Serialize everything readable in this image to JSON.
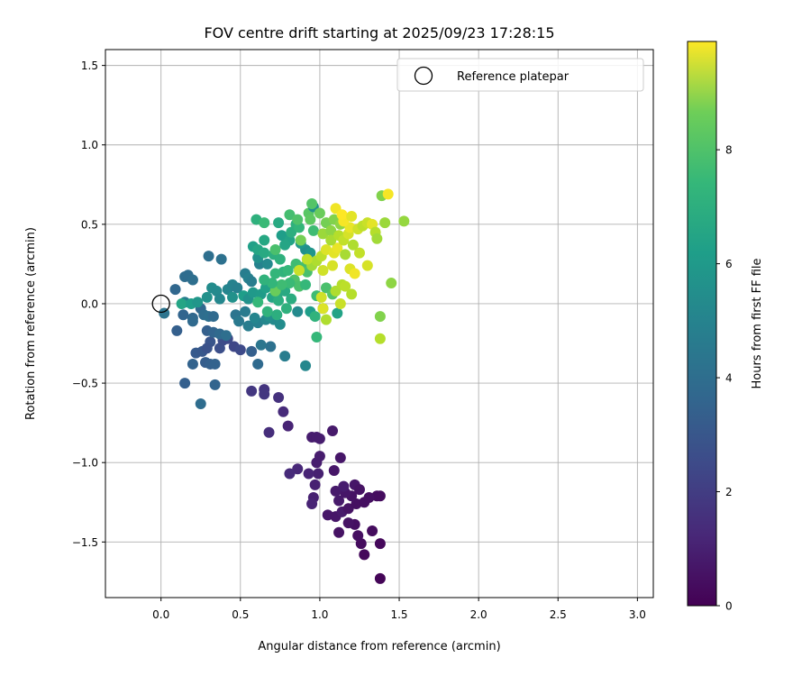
{
  "chart_data": {
    "type": "scatter",
    "title": "FOV centre drift starting at 2025/09/23 17:28:15",
    "xlabel": "Angular distance from reference (arcmin)",
    "ylabel": "Rotation from reference (arcmin)",
    "xlim": [
      -0.35,
      3.1
    ],
    "ylim": [
      -1.85,
      1.6
    ],
    "xticks": [
      0.0,
      0.5,
      1.0,
      1.5,
      2.0,
      2.5,
      3.0
    ],
    "xtick_labels": [
      "0.0",
      "0.5",
      "1.0",
      "1.5",
      "2.0",
      "2.5",
      "3.0"
    ],
    "yticks": [
      -1.5,
      -1.0,
      -0.5,
      0.0,
      0.5,
      1.0,
      1.5
    ],
    "ytick_labels": [
      "−1.5",
      "−1.0",
      "−0.5",
      "0.0",
      "0.5",
      "1.0",
      "1.5"
    ],
    "grid": true,
    "legend": {
      "position": "top-right",
      "entries": [
        {
          "label": "Reference platepar",
          "marker": "open-circle"
        }
      ]
    },
    "reference_point": {
      "x": 0.0,
      "y": 0.0
    },
    "colorbar": {
      "label": "Hours from first FF file",
      "range": [
        0,
        9.9
      ],
      "ticks": [
        0,
        2,
        4,
        6,
        8
      ],
      "tick_labels": [
        "0",
        "2",
        "4",
        "6",
        "8"
      ],
      "colormap": "viridis"
    },
    "points": [
      {
        "x": 1.38,
        "y": -1.73,
        "c": 0.1
      },
      {
        "x": 1.28,
        "y": -1.58,
        "c": 0.2
      },
      {
        "x": 1.38,
        "y": -1.51,
        "c": 0.2
      },
      {
        "x": 1.26,
        "y": -1.51,
        "c": 0.3
      },
      {
        "x": 1.33,
        "y": -1.43,
        "c": 0.3
      },
      {
        "x": 1.24,
        "y": -1.46,
        "c": 0.4
      },
      {
        "x": 1.22,
        "y": -1.39,
        "c": 0.4
      },
      {
        "x": 1.12,
        "y": -1.44,
        "c": 0.5
      },
      {
        "x": 1.18,
        "y": -1.38,
        "c": 0.5
      },
      {
        "x": 1.1,
        "y": -1.34,
        "c": 0.6
      },
      {
        "x": 1.05,
        "y": -1.33,
        "c": 0.6
      },
      {
        "x": 1.14,
        "y": -1.31,
        "c": 0.7
      },
      {
        "x": 1.18,
        "y": -1.29,
        "c": 0.5
      },
      {
        "x": 1.23,
        "y": -1.26,
        "c": 0.4
      },
      {
        "x": 1.28,
        "y": -1.25,
        "c": 0.4
      },
      {
        "x": 1.2,
        "y": -1.21,
        "c": 0.5
      },
      {
        "x": 1.16,
        "y": -1.19,
        "c": 0.6
      },
      {
        "x": 1.1,
        "y": -1.18,
        "c": 0.7
      },
      {
        "x": 1.15,
        "y": -1.15,
        "c": 0.8
      },
      {
        "x": 1.22,
        "y": -1.14,
        "c": 0.6
      },
      {
        "x": 1.25,
        "y": -1.17,
        "c": 0.5
      },
      {
        "x": 1.36,
        "y": -1.21,
        "c": 0.3
      },
      {
        "x": 1.38,
        "y": -1.21,
        "c": 0.3
      },
      {
        "x": 1.31,
        "y": -1.22,
        "c": 0.4
      },
      {
        "x": 1.12,
        "y": -1.24,
        "c": 0.7
      },
      {
        "x": 0.96,
        "y": -1.22,
        "c": 0.9
      },
      {
        "x": 0.95,
        "y": -1.26,
        "c": 1.0
      },
      {
        "x": 0.97,
        "y": -1.14,
        "c": 0.9
      },
      {
        "x": 0.99,
        "y": -1.07,
        "c": 0.9
      },
      {
        "x": 0.93,
        "y": -1.07,
        "c": 1.0
      },
      {
        "x": 0.86,
        "y": -1.04,
        "c": 1.1
      },
      {
        "x": 0.81,
        "y": -1.07,
        "c": 1.2
      },
      {
        "x": 0.98,
        "y": -1.0,
        "c": 0.8
      },
      {
        "x": 1.0,
        "y": -0.96,
        "c": 0.8
      },
      {
        "x": 1.09,
        "y": -1.05,
        "c": 0.6
      },
      {
        "x": 1.13,
        "y": -0.97,
        "c": 0.6
      },
      {
        "x": 1.08,
        "y": -0.8,
        "c": 0.7
      },
      {
        "x": 0.95,
        "y": -0.84,
        "c": 0.8
      },
      {
        "x": 0.98,
        "y": -0.84,
        "c": 0.8
      },
      {
        "x": 1.0,
        "y": -0.85,
        "c": 0.8
      },
      {
        "x": 0.8,
        "y": -0.77,
        "c": 1.0
      },
      {
        "x": 0.77,
        "y": -0.68,
        "c": 1.2
      },
      {
        "x": 0.68,
        "y": -0.81,
        "c": 1.3
      },
      {
        "x": 0.74,
        "y": -0.59,
        "c": 1.4
      },
      {
        "x": 0.65,
        "y": -0.54,
        "c": 1.5
      },
      {
        "x": 0.65,
        "y": -0.57,
        "c": 1.6
      },
      {
        "x": 0.57,
        "y": -0.55,
        "c": 1.6
      },
      {
        "x": 0.25,
        "y": -0.63,
        "c": 3.5
      },
      {
        "x": 0.15,
        "y": -0.5,
        "c": 3.0
      },
      {
        "x": 0.34,
        "y": -0.51,
        "c": 3.2
      },
      {
        "x": 0.2,
        "y": -0.38,
        "c": 3.1
      },
      {
        "x": 0.28,
        "y": -0.37,
        "c": 2.9
      },
      {
        "x": 0.31,
        "y": -0.38,
        "c": 3.0
      },
      {
        "x": 0.34,
        "y": -0.38,
        "c": 3.1
      },
      {
        "x": 0.22,
        "y": -0.31,
        "c": 2.8
      },
      {
        "x": 0.26,
        "y": -0.3,
        "c": 2.7
      },
      {
        "x": 0.31,
        "y": -0.24,
        "c": 2.6
      },
      {
        "x": 0.29,
        "y": -0.28,
        "c": 2.5
      },
      {
        "x": 0.37,
        "y": -0.28,
        "c": 2.4
      },
      {
        "x": 0.39,
        "y": -0.23,
        "c": 2.3
      },
      {
        "x": 0.42,
        "y": -0.22,
        "c": 2.2
      },
      {
        "x": 0.46,
        "y": -0.27,
        "c": 2.1
      },
      {
        "x": 0.5,
        "y": -0.29,
        "c": 2.2
      },
      {
        "x": 0.57,
        "y": -0.3,
        "c": 3.0
      },
      {
        "x": 0.61,
        "y": -0.38,
        "c": 3.4
      },
      {
        "x": 0.69,
        "y": -0.27,
        "c": 3.7
      },
      {
        "x": 0.63,
        "y": -0.26,
        "c": 3.9
      },
      {
        "x": 0.78,
        "y": -0.33,
        "c": 4.2
      },
      {
        "x": 0.91,
        "y": -0.39,
        "c": 4.6
      },
      {
        "x": 0.1,
        "y": -0.17,
        "c": 3.0
      },
      {
        "x": 0.14,
        "y": -0.07,
        "c": 3.2
      },
      {
        "x": 0.2,
        "y": -0.09,
        "c": 3.3
      },
      {
        "x": 0.2,
        "y": -0.11,
        "c": 3.4
      },
      {
        "x": 0.25,
        "y": -0.03,
        "c": 3.3
      },
      {
        "x": 0.27,
        "y": -0.07,
        "c": 3.5
      },
      {
        "x": 0.3,
        "y": -0.08,
        "c": 3.6
      },
      {
        "x": 0.33,
        "y": -0.08,
        "c": 3.4
      },
      {
        "x": 0.29,
        "y": -0.17,
        "c": 3.0
      },
      {
        "x": 0.33,
        "y": -0.18,
        "c": 3.2
      },
      {
        "x": 0.37,
        "y": -0.19,
        "c": 3.4
      },
      {
        "x": 0.41,
        "y": -0.2,
        "c": 3.6
      },
      {
        "x": 0.47,
        "y": -0.07,
        "c": 3.8
      },
      {
        "x": 0.49,
        "y": -0.11,
        "c": 4.0
      },
      {
        "x": 0.53,
        "y": -0.05,
        "c": 4.1
      },
      {
        "x": 0.55,
        "y": -0.14,
        "c": 4.2
      },
      {
        "x": 0.61,
        "y": -0.12,
        "c": 4.3
      },
      {
        "x": 0.59,
        "y": -0.09,
        "c": 4.5
      },
      {
        "x": 0.66,
        "y": -0.1,
        "c": 4.6
      },
      {
        "x": 0.71,
        "y": -0.1,
        "c": 4.7
      },
      {
        "x": 0.75,
        "y": -0.13,
        "c": 4.8
      },
      {
        "x": 0.68,
        "y": -0.08,
        "c": 4.9
      },
      {
        "x": 0.02,
        "y": -0.06,
        "c": 3.8
      },
      {
        "x": 0.09,
        "y": 0.09,
        "c": 3.3
      },
      {
        "x": 0.15,
        "y": 0.17,
        "c": 3.5
      },
      {
        "x": 0.17,
        "y": 0.18,
        "c": 3.5
      },
      {
        "x": 0.2,
        "y": 0.15,
        "c": 3.6
      },
      {
        "x": 0.15,
        "y": 0.01,
        "c": 4.2
      },
      {
        "x": 0.13,
        "y": 0.0,
        "c": 5.8
      },
      {
        "x": 0.19,
        "y": 0.0,
        "c": 5.5
      },
      {
        "x": 0.23,
        "y": 0.01,
        "c": 5.2
      },
      {
        "x": 0.29,
        "y": 0.04,
        "c": 5.0
      },
      {
        "x": 0.32,
        "y": 0.1,
        "c": 4.8
      },
      {
        "x": 0.35,
        "y": 0.08,
        "c": 4.7
      },
      {
        "x": 0.37,
        "y": 0.03,
        "c": 4.6
      },
      {
        "x": 0.42,
        "y": 0.09,
        "c": 4.5
      },
      {
        "x": 0.45,
        "y": 0.12,
        "c": 4.4
      },
      {
        "x": 0.48,
        "y": 0.1,
        "c": 4.3
      },
      {
        "x": 0.53,
        "y": 0.19,
        "c": 4.2
      },
      {
        "x": 0.55,
        "y": 0.16,
        "c": 4.3
      },
      {
        "x": 0.57,
        "y": 0.14,
        "c": 4.2
      },
      {
        "x": 0.3,
        "y": 0.3,
        "c": 3.6
      },
      {
        "x": 0.38,
        "y": 0.28,
        "c": 3.7
      },
      {
        "x": 0.45,
        "y": 0.04,
        "c": 5.0
      },
      {
        "x": 0.52,
        "y": 0.05,
        "c": 5.5
      },
      {
        "x": 0.55,
        "y": 0.03,
        "c": 5.0
      },
      {
        "x": 0.58,
        "y": 0.07,
        "c": 5.3
      },
      {
        "x": 0.63,
        "y": 0.06,
        "c": 5.4
      },
      {
        "x": 0.66,
        "y": 0.1,
        "c": 5.6
      },
      {
        "x": 0.7,
        "y": 0.04,
        "c": 5.8
      },
      {
        "x": 0.73,
        "y": 0.05,
        "c": 5.9
      },
      {
        "x": 0.78,
        "y": 0.08,
        "c": 6.0
      },
      {
        "x": 0.82,
        "y": 0.03,
        "c": 6.1
      },
      {
        "x": 0.74,
        "y": 0.02,
        "c": 6.2
      },
      {
        "x": 0.79,
        "y": -0.03,
        "c": 6.3
      },
      {
        "x": 0.67,
        "y": -0.05,
        "c": 6.4
      },
      {
        "x": 0.73,
        "y": -0.07,
        "c": 6.2
      },
      {
        "x": 0.61,
        "y": 0.01,
        "c": 6.6
      },
      {
        "x": 0.72,
        "y": 0.08,
        "c": 7.6
      },
      {
        "x": 0.86,
        "y": -0.05,
        "c": 4.7
      },
      {
        "x": 0.94,
        "y": -0.05,
        "c": 5.5
      },
      {
        "x": 1.02,
        "y": -0.03,
        "c": 5.9
      },
      {
        "x": 0.97,
        "y": -0.08,
        "c": 6.4
      },
      {
        "x": 1.11,
        "y": -0.06,
        "c": 5.7
      },
      {
        "x": 0.98,
        "y": -0.21,
        "c": 6.6
      },
      {
        "x": 0.62,
        "y": 0.25,
        "c": 4.4
      },
      {
        "x": 0.67,
        "y": 0.25,
        "c": 4.7
      },
      {
        "x": 0.61,
        "y": 0.29,
        "c": 5.0
      },
      {
        "x": 0.58,
        "y": 0.36,
        "c": 5.6
      },
      {
        "x": 0.61,
        "y": 0.34,
        "c": 5.8
      },
      {
        "x": 0.65,
        "y": 0.32,
        "c": 6.0
      },
      {
        "x": 0.71,
        "y": 0.31,
        "c": 6.2
      },
      {
        "x": 0.75,
        "y": 0.28,
        "c": 6.3
      },
      {
        "x": 0.77,
        "y": 0.2,
        "c": 6.4
      },
      {
        "x": 0.72,
        "y": 0.19,
        "c": 6.5
      },
      {
        "x": 0.8,
        "y": 0.21,
        "c": 6.6
      },
      {
        "x": 0.85,
        "y": 0.25,
        "c": 6.8
      },
      {
        "x": 0.89,
        "y": 0.23,
        "c": 6.9
      },
      {
        "x": 0.92,
        "y": 0.2,
        "c": 7.0
      },
      {
        "x": 0.84,
        "y": 0.15,
        "c": 7.1
      },
      {
        "x": 0.87,
        "y": 0.11,
        "c": 7.0
      },
      {
        "x": 0.91,
        "y": 0.12,
        "c": 6.6
      },
      {
        "x": 0.81,
        "y": 0.13,
        "c": 6.7
      },
      {
        "x": 0.76,
        "y": 0.12,
        "c": 6.8
      },
      {
        "x": 0.7,
        "y": 0.13,
        "c": 6.5
      },
      {
        "x": 0.65,
        "y": 0.15,
        "c": 6.4
      },
      {
        "x": 0.98,
        "y": 0.05,
        "c": 6.8
      },
      {
        "x": 1.04,
        "y": 0.1,
        "c": 7.0
      },
      {
        "x": 1.08,
        "y": 0.06,
        "c": 7.2
      },
      {
        "x": 0.91,
        "y": 0.34,
        "c": 4.9
      },
      {
        "x": 0.94,
        "y": 0.32,
        "c": 5.2
      },
      {
        "x": 0.88,
        "y": 0.38,
        "c": 5.3
      },
      {
        "x": 0.65,
        "y": 0.4,
        "c": 5.9
      },
      {
        "x": 0.76,
        "y": 0.43,
        "c": 5.5
      },
      {
        "x": 0.81,
        "y": 0.4,
        "c": 5.7
      },
      {
        "x": 0.78,
        "y": 0.37,
        "c": 5.8
      },
      {
        "x": 0.82,
        "y": 0.45,
        "c": 6.2
      },
      {
        "x": 0.74,
        "y": 0.51,
        "c": 6.0
      },
      {
        "x": 0.85,
        "y": 0.5,
        "c": 6.3
      },
      {
        "x": 0.87,
        "y": 0.48,
        "c": 6.5
      },
      {
        "x": 0.96,
        "y": 0.46,
        "c": 6.8
      },
      {
        "x": 0.88,
        "y": 0.4,
        "c": 7.8
      },
      {
        "x": 0.6,
        "y": 0.53,
        "c": 6.3
      },
      {
        "x": 0.65,
        "y": 0.51,
        "c": 6.7
      },
      {
        "x": 0.81,
        "y": 0.56,
        "c": 6.9
      },
      {
        "x": 0.86,
        "y": 0.53,
        "c": 7.1
      },
      {
        "x": 0.93,
        "y": 0.57,
        "c": 7.3
      },
      {
        "x": 0.94,
        "y": 0.53,
        "c": 7.4
      },
      {
        "x": 0.96,
        "y": 0.61,
        "c": 5.0
      },
      {
        "x": 0.95,
        "y": 0.63,
        "c": 7.2
      },
      {
        "x": 1.0,
        "y": 0.57,
        "c": 7.6
      },
      {
        "x": 1.04,
        "y": 0.51,
        "c": 7.8
      },
      {
        "x": 1.09,
        "y": 0.53,
        "c": 8.0
      },
      {
        "x": 1.13,
        "y": 0.5,
        "c": 8.2
      },
      {
        "x": 1.02,
        "y": 0.44,
        "c": 8.4
      },
      {
        "x": 1.07,
        "y": 0.46,
        "c": 8.2
      },
      {
        "x": 0.72,
        "y": 0.34,
        "c": 7.0
      },
      {
        "x": 0.95,
        "y": 0.24,
        "c": 8.5
      },
      {
        "x": 0.98,
        "y": 0.27,
        "c": 8.7
      },
      {
        "x": 1.01,
        "y": 0.3,
        "c": 8.9
      },
      {
        "x": 0.92,
        "y": 0.28,
        "c": 9.0
      },
      {
        "x": 0.87,
        "y": 0.21,
        "c": 9.1
      },
      {
        "x": 1.02,
        "y": 0.21,
        "c": 9.2
      },
      {
        "x": 1.08,
        "y": 0.24,
        "c": 9.3
      },
      {
        "x": 1.04,
        "y": 0.34,
        "c": 9.4
      },
      {
        "x": 1.09,
        "y": 0.32,
        "c": 9.5
      },
      {
        "x": 1.11,
        "y": 0.35,
        "c": 9.6
      },
      {
        "x": 1.07,
        "y": 0.4,
        "c": 8.6
      },
      {
        "x": 1.12,
        "y": 0.43,
        "c": 8.8
      },
      {
        "x": 1.15,
        "y": 0.4,
        "c": 9.0
      },
      {
        "x": 1.18,
        "y": 0.44,
        "c": 9.3
      },
      {
        "x": 1.19,
        "y": 0.48,
        "c": 9.6
      },
      {
        "x": 1.15,
        "y": 0.52,
        "c": 9.8
      },
      {
        "x": 1.1,
        "y": 0.6,
        "c": 9.7
      },
      {
        "x": 1.14,
        "y": 0.56,
        "c": 9.9
      },
      {
        "x": 1.2,
        "y": 0.55,
        "c": 9.5
      },
      {
        "x": 1.24,
        "y": 0.47,
        "c": 9.2
      },
      {
        "x": 1.27,
        "y": 0.49,
        "c": 8.9
      },
      {
        "x": 1.3,
        "y": 0.51,
        "c": 9.1
      },
      {
        "x": 1.33,
        "y": 0.5,
        "c": 9.5
      },
      {
        "x": 1.35,
        "y": 0.45,
        "c": 8.8
      },
      {
        "x": 1.36,
        "y": 0.41,
        "c": 8.5
      },
      {
        "x": 1.41,
        "y": 0.51,
        "c": 8.4
      },
      {
        "x": 1.3,
        "y": 0.24,
        "c": 9.3
      },
      {
        "x": 1.25,
        "y": 0.32,
        "c": 9.0
      },
      {
        "x": 1.21,
        "y": 0.37,
        "c": 8.7
      },
      {
        "x": 1.16,
        "y": 0.31,
        "c": 8.6
      },
      {
        "x": 1.19,
        "y": 0.22,
        "c": 9.4
      },
      {
        "x": 1.22,
        "y": 0.19,
        "c": 9.7
      },
      {
        "x": 1.2,
        "y": 0.06,
        "c": 8.8
      },
      {
        "x": 1.1,
        "y": 0.08,
        "c": 8.7
      },
      {
        "x": 1.14,
        "y": 0.12,
        "c": 8.8
      },
      {
        "x": 1.16,
        "y": 0.11,
        "c": 8.9
      },
      {
        "x": 1.01,
        "y": 0.04,
        "c": 9.2
      },
      {
        "x": 1.02,
        "y": -0.03,
        "c": 9.4
      },
      {
        "x": 1.04,
        "y": -0.1,
        "c": 8.7
      },
      {
        "x": 1.13,
        "y": 0.0,
        "c": 9.1
      },
      {
        "x": 1.39,
        "y": 0.68,
        "c": 8.0
      },
      {
        "x": 1.43,
        "y": 0.69,
        "c": 9.8
      },
      {
        "x": 1.45,
        "y": 0.13,
        "c": 8.2
      },
      {
        "x": 1.53,
        "y": 0.52,
        "c": 8.3
      },
      {
        "x": 1.38,
        "y": -0.08,
        "c": 8.0
      },
      {
        "x": 1.38,
        "y": -0.22,
        "c": 8.8
      }
    ]
  }
}
